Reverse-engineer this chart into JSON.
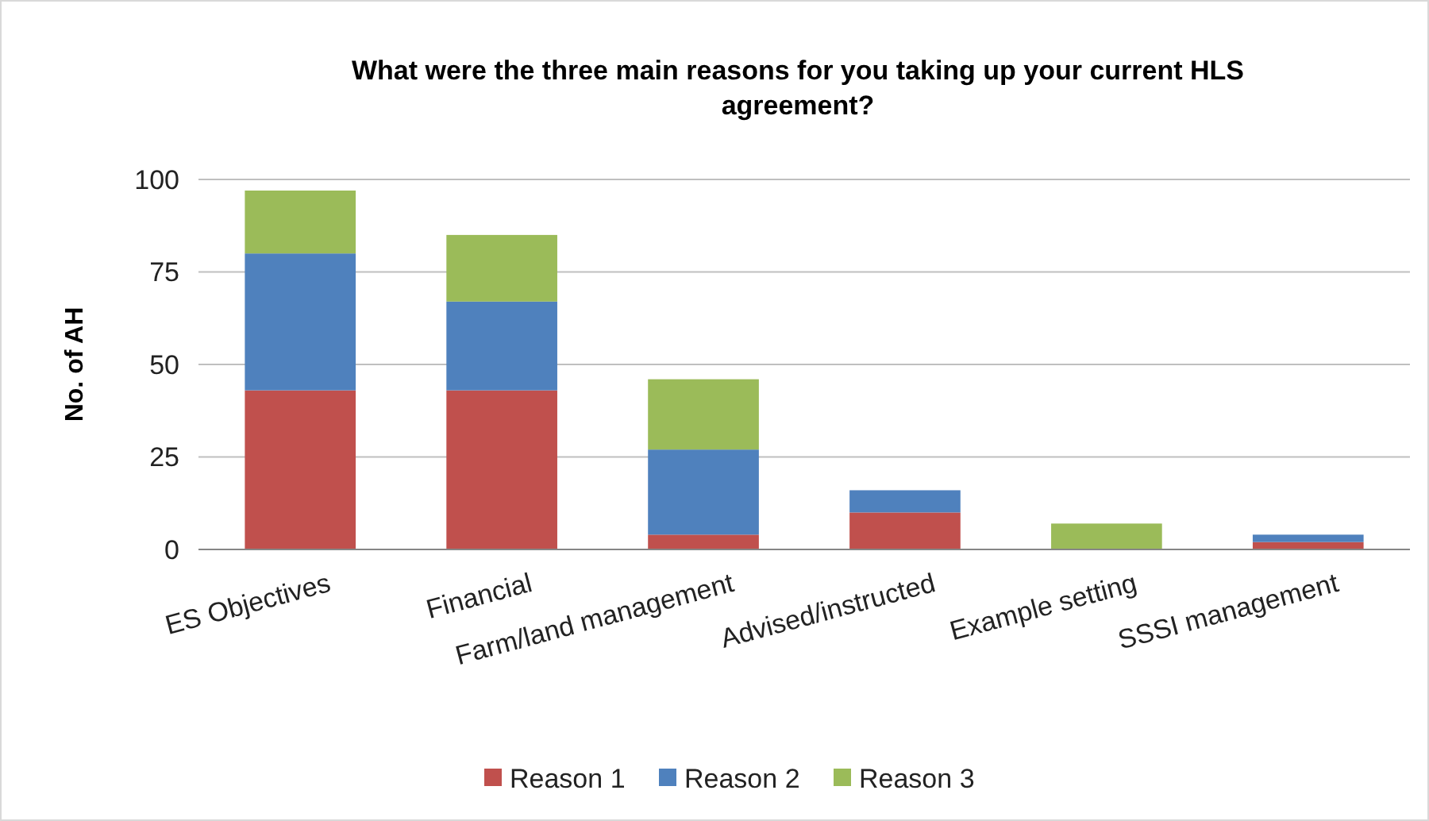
{
  "chart_data": {
    "type": "bar",
    "title": "What were the three main reasons for you taking up your current HLS agreement?",
    "ylabel": "No. of AH",
    "categories": [
      "ES Objectives",
      "Financial",
      "Farm/land management",
      "Advised/instructed",
      "Example setting",
      "SSSI management"
    ],
    "series": [
      {
        "name": "Reason 1",
        "color": "#c0504d",
        "values": [
          43,
          43,
          4,
          10,
          0,
          2
        ]
      },
      {
        "name": "Reason 2",
        "color": "#4f81bd",
        "values": [
          37,
          24,
          23,
          6,
          0,
          2
        ]
      },
      {
        "name": "Reason 3",
        "color": "#9bbb59",
        "values": [
          17,
          18,
          19,
          0,
          7,
          0
        ]
      }
    ],
    "stacked": true,
    "ylim": [
      0,
      100
    ],
    "yticks": [
      0,
      25,
      50,
      75,
      100
    ],
    "grid": "y",
    "legend": "bottom"
  }
}
